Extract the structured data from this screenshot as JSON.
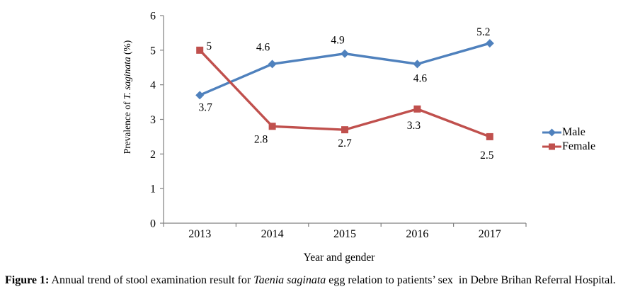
{
  "figure": {
    "caption": {
      "label": "Figure 1:",
      "text_before_species": " Annual trend of stool examination result for ",
      "species": "Taenia saginata",
      "text_after_species": " egg relation to patients’ sex  in Debre Brihan Referral Hospital."
    }
  },
  "chart_data": {
    "type": "line",
    "title": "",
    "xlabel": "Year and gender",
    "ylabel": "Prevalence of T. saginata (%)",
    "ylabel_parts": {
      "pre": "Prevalence of ",
      "italic": "T. saginata",
      "post": " (%)"
    },
    "categories": [
      "2013",
      "2014",
      "2015",
      "2016",
      "2017"
    ],
    "series": [
      {
        "name": "Male",
        "color": "#4F81BD",
        "marker": "diamond",
        "values": [
          3.7,
          4.6,
          4.9,
          4.6,
          5.2
        ],
        "data_labels": [
          "3.7",
          "4.6",
          "4.9",
          "4.6",
          "5.2"
        ],
        "label_offsets": [
          [
            8,
            22
          ],
          [
            -13,
            -19
          ],
          [
            -10,
            -14
          ],
          [
            4,
            25
          ],
          [
            -9,
            -11
          ]
        ]
      },
      {
        "name": "Female",
        "color": "#C0504D",
        "marker": "square",
        "values": [
          5,
          2.8,
          2.7,
          3.3,
          2.5
        ],
        "data_labels": [
          "5",
          "2.8",
          "2.7",
          "3.3",
          "2.5"
        ],
        "label_offsets": [
          [
            13,
            -1
          ],
          [
            -16,
            23
          ],
          [
            0,
            24
          ],
          [
            -5,
            28
          ],
          [
            -4,
            31
          ]
        ]
      }
    ],
    "ylim": [
      0,
      6
    ],
    "yticks": [
      0,
      1,
      2,
      3,
      4,
      5,
      6
    ],
    "grid": false,
    "legend_position": "right",
    "axis_color": "#808080",
    "text_color": "#000000"
  }
}
